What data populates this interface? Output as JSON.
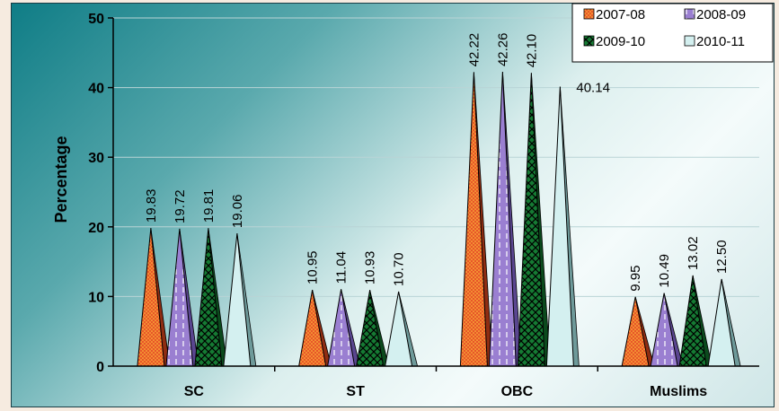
{
  "chart_data": {
    "type": "bar",
    "categories": [
      "SC",
      "ST",
      "OBC",
      "Muslims"
    ],
    "series": [
      {
        "name": "2007-08",
        "values": [
          19.83,
          10.95,
          42.22,
          9.95
        ],
        "labels": [
          "19.83",
          "10.95",
          "42.22",
          "9.95"
        ]
      },
      {
        "name": "2008-09",
        "values": [
          19.72,
          11.04,
          42.26,
          10.49
        ],
        "labels": [
          "19.72",
          "11.04",
          "42.26",
          "10.49"
        ]
      },
      {
        "name": "2009-10",
        "values": [
          19.81,
          10.93,
          42.1,
          13.02
        ],
        "labels": [
          "19.81",
          "10.93",
          "42.10",
          "13.02"
        ]
      },
      {
        "name": "2010-11",
        "values": [
          19.06,
          10.7,
          40.14,
          12.5
        ],
        "labels": [
          "19.06",
          "10.70",
          "40.14",
          "12.50"
        ]
      }
    ],
    "ylabel": "Percentage",
    "ylim": [
      0,
      50
    ],
    "yticks": [
      "0",
      "10",
      "20",
      "30",
      "40",
      "50"
    ],
    "legend_position": "top-right",
    "colors": {
      "2007-08": "#e8562a",
      "2008-09": "#9a7fd1",
      "2009-10": "#1e8a3c",
      "2010-11": "#cfeeee",
      "axis": "#000000",
      "grid": "#b9d4d6"
    }
  }
}
